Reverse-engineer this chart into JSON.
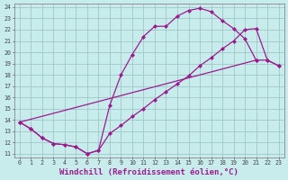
{
  "xlabel": "Windchill (Refroidissement éolien,°C)",
  "bg_color": "#c8ecec",
  "grid_color": "#a0c8c8",
  "line_color": "#9b1b8e",
  "line1_x": [
    0,
    1,
    2,
    3,
    4,
    5,
    6,
    7,
    8,
    9,
    10,
    11,
    12,
    13,
    14,
    15,
    16,
    17,
    18,
    19,
    20,
    21
  ],
  "line1_y": [
    13.8,
    13.2,
    12.4,
    11.9,
    11.8,
    11.6,
    11.0,
    11.3,
    15.3,
    18.0,
    19.8,
    21.4,
    22.3,
    22.3,
    23.2,
    23.7,
    23.9,
    23.6,
    22.8,
    22.1,
    21.2,
    19.3
  ],
  "line2_x": [
    0,
    1,
    2,
    3,
    4,
    5,
    6,
    7,
    8,
    9,
    10,
    11,
    12,
    13,
    14,
    15,
    16,
    17,
    18,
    19,
    20,
    21,
    22,
    23
  ],
  "line2_y": [
    13.8,
    13.2,
    12.4,
    11.9,
    11.8,
    11.6,
    11.0,
    11.3,
    12.8,
    13.5,
    14.3,
    15.0,
    15.8,
    16.5,
    17.2,
    17.9,
    18.8,
    19.5,
    20.3,
    21.0,
    22.0,
    22.1,
    19.3,
    18.8
  ],
  "line3_x": [
    0,
    21,
    22,
    23
  ],
  "line3_y": [
    13.8,
    19.3,
    19.3,
    18.8
  ],
  "ylim_min": 11,
  "ylim_max": 24,
  "xlim_min": 0,
  "xlim_max": 23,
  "yticks": [
    11,
    12,
    13,
    14,
    15,
    16,
    17,
    18,
    19,
    20,
    21,
    22,
    23,
    24
  ],
  "xticks": [
    0,
    1,
    2,
    3,
    4,
    5,
    6,
    7,
    8,
    9,
    10,
    11,
    12,
    13,
    14,
    15,
    16,
    17,
    18,
    19,
    20,
    21,
    22,
    23
  ],
  "marker": "D",
  "markersize": 2.0,
  "linewidth": 0.9,
  "tick_fontsize": 4.8,
  "xlabel_fontsize": 6.5
}
